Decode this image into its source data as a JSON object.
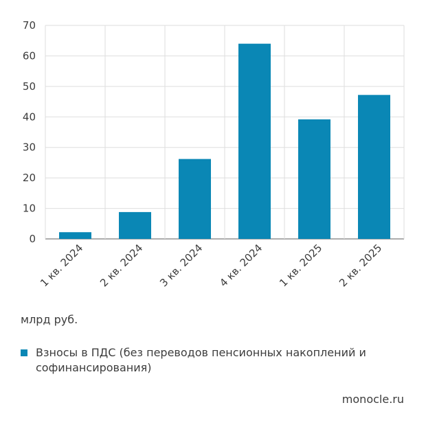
{
  "chart_data": {
    "type": "bar",
    "categories": [
      "1 кв. 2024",
      "2 кв. 2024",
      "3 кв. 2024",
      "4 кв. 2024",
      "1 кв. 2025",
      "2 кв. 2025"
    ],
    "series": [
      {
        "name": "Взносы в ПДС (без переводов пенсионных накоплений и софинансирования)",
        "values": [
          2.2,
          8.8,
          26.2,
          64.0,
          39.2,
          47.2
        ],
        "color": "#0a87b5"
      }
    ],
    "ylim": [
      0,
      70
    ],
    "yticks": [
      0,
      10,
      20,
      30,
      40,
      50,
      60,
      70
    ],
    "ylabel": "млрд руб.",
    "grid": true,
    "legend_position": "bottom"
  },
  "source": "monocle.ru"
}
